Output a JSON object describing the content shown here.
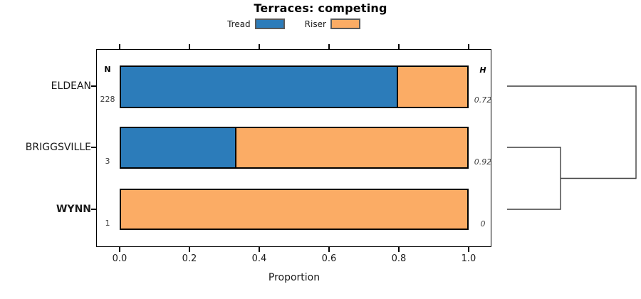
{
  "title": "Terraces: competing",
  "legend": {
    "items": [
      {
        "label": "Tread",
        "color": "#2C7CBA"
      },
      {
        "label": "Riser",
        "color": "#FBAC65"
      }
    ]
  },
  "chart_data": {
    "type": "bar",
    "orientation": "horizontal_stacked",
    "title": "Terraces: competing",
    "xlabel": "Proportion",
    "xlim": [
      0,
      1.07
    ],
    "xticks": [
      "0.0",
      "0.2",
      "0.4",
      "0.6",
      "0.8",
      "1.0"
    ],
    "xtick_values": [
      0.0,
      0.2,
      0.4,
      0.6,
      0.8,
      1.0
    ],
    "grid": false,
    "legend_position": "top-center",
    "categories": [
      "ELDEAN",
      "BRIGGSVILLE",
      "WYNN"
    ],
    "category_bold": [
      false,
      false,
      true
    ],
    "series": [
      {
        "name": "Tread",
        "color": "#2C7CBA",
        "values": [
          0.8,
          0.333,
          0.0
        ]
      },
      {
        "name": "Riser",
        "color": "#FBAC65",
        "values": [
          0.2,
          0.667,
          1.0
        ]
      }
    ],
    "n_column": {
      "header": "N",
      "values": [
        "228",
        "3",
        "1"
      ]
    },
    "h_column": {
      "header": "H",
      "values": [
        "0.72",
        "0.92",
        "0"
      ]
    },
    "dendrogram": {
      "side": "right",
      "merges": [
        {
          "members": [
            "BRIGGSVILLE",
            "WYNN"
          ],
          "relative_height": 0.41
        },
        {
          "members": [
            "BRIGGSVILLE+WYNN",
            "ELDEAN"
          ],
          "relative_height": 1.0
        }
      ]
    }
  }
}
